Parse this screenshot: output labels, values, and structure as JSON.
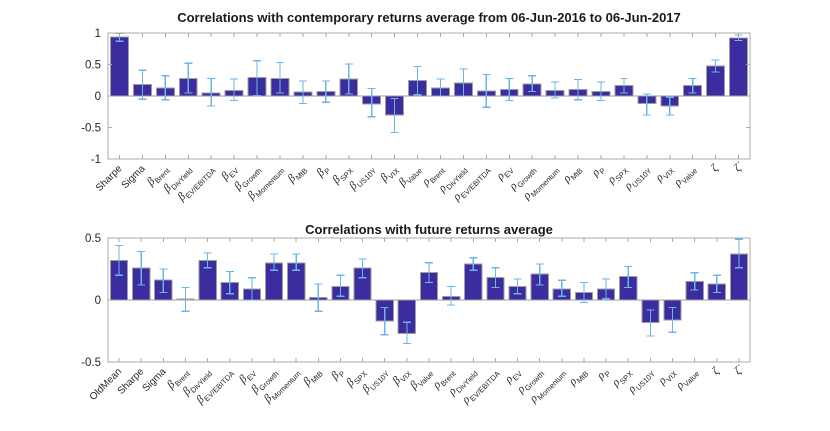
{
  "figure": {
    "background": "#ffffff"
  },
  "colors": {
    "bar_fill": "#3b2da0",
    "bar_edge": "#9e9e9e",
    "error_bar": "#6cb5e8",
    "axis_box": "#a9a9a9",
    "tick_text": "#262626",
    "title_text": "#1a1a1a"
  },
  "chart_data": [
    {
      "type": "bar",
      "title": "Correlations with contemporary returns average from 06-Jun-2016 to 06-Jun-2017",
      "xlabel": "",
      "ylabel": "",
      "grid": false,
      "legend": null,
      "ylim": [
        -1,
        1
      ],
      "yticks": [
        1,
        0.5,
        0,
        -0.5,
        -1
      ],
      "ytick_labels": [
        "1",
        "0.5",
        "0",
        "-0.5",
        "-1"
      ],
      "categories": [
        "Sharpe",
        "Sigma",
        "β_Brent",
        "β_DivYield",
        "β_EV/EBITDA",
        "β_EV",
        "β_Growth",
        "β_Momentum",
        "β_MtB",
        "β_P",
        "β_SPX",
        "β_US10Y",
        "β_VIX",
        "β_Value",
        "ρ_Brent",
        "ρ_DivYield",
        "ρ_EV/EBITDA",
        "ρ_EV",
        "ρ_Growth",
        "ρ_Momentum",
        "ρ_MtB",
        "ρ_P",
        "ρ_SPX",
        "ρ_US10Y",
        "ρ_VIX",
        "ρ_Value",
        "ζ",
        "ζ̇"
      ],
      "values": [
        0.94,
        0.18,
        0.13,
        0.28,
        0.05,
        0.09,
        0.29,
        0.28,
        0.06,
        0.07,
        0.27,
        -0.13,
        -0.3,
        0.25,
        0.13,
        0.21,
        0.08,
        0.1,
        0.19,
        0.09,
        0.1,
        0.07,
        0.17,
        -0.12,
        -0.16,
        0.17,
        0.48,
        0.92
      ],
      "error_low": [
        0.87,
        -0.05,
        -0.06,
        0.05,
        -0.16,
        -0.07,
        0.01,
        0.05,
        -0.12,
        -0.1,
        0.03,
        -0.33,
        -0.58,
        0.02,
        0.0,
        0.0,
        -0.18,
        -0.07,
        0.07,
        -0.03,
        -0.06,
        -0.07,
        0.05,
        -0.3,
        -0.3,
        0.05,
        0.38,
        0.88
      ],
      "error_high": [
        0.99,
        0.41,
        0.32,
        0.52,
        0.28,
        0.27,
        0.56,
        0.53,
        0.24,
        0.24,
        0.51,
        0.12,
        -0.04,
        0.47,
        0.27,
        0.43,
        0.34,
        0.28,
        0.32,
        0.22,
        0.26,
        0.22,
        0.28,
        0.03,
        -0.02,
        0.28,
        0.57,
        0.97
      ]
    },
    {
      "type": "bar",
      "title": "Correlations with future returns average",
      "xlabel": "",
      "ylabel": "",
      "grid": false,
      "legend": null,
      "ylim": [
        -0.5,
        0.5
      ],
      "yticks": [
        0.5,
        0,
        -0.5
      ],
      "ytick_labels": [
        "0.5",
        "0",
        "-0.5"
      ],
      "categories": [
        "OldMean",
        "Sharpe",
        "Sigma",
        "β_Brent",
        "β_DivYield",
        "β_EV/EBITDA",
        "β_EV",
        "β_Growth",
        "β_Momentum",
        "β_MtB",
        "β_P",
        "β_SPX",
        "β_US10Y",
        "β_VIX",
        "β_Value",
        "ρ_Brent",
        "ρ_DivYield",
        "ρ_EV/EBITDA",
        "ρ_EV",
        "ρ_Growth",
        "ρ_Momentum",
        "ρ_MtB",
        "ρ_P",
        "ρ_SPX",
        "ρ_US10Y",
        "ρ_VIX",
        "ρ_Value",
        "ζ",
        "ζ̇"
      ],
      "values": [
        0.32,
        0.26,
        0.16,
        0.01,
        0.32,
        0.14,
        0.09,
        0.3,
        0.3,
        0.02,
        0.11,
        0.26,
        -0.17,
        -0.27,
        0.22,
        0.03,
        0.29,
        0.18,
        0.11,
        0.21,
        0.09,
        0.06,
        0.09,
        0.19,
        -0.18,
        -0.16,
        0.15,
        0.13,
        0.37
      ],
      "error_low": [
        0.2,
        0.12,
        0.06,
        -0.09,
        0.26,
        0.05,
        0.0,
        0.24,
        0.24,
        -0.09,
        0.03,
        0.18,
        -0.28,
        -0.35,
        0.14,
        -0.04,
        0.24,
        0.1,
        0.05,
        0.12,
        0.03,
        -0.02,
        0.01,
        0.1,
        -0.29,
        -0.26,
        0.08,
        0.06,
        0.26
      ],
      "error_high": [
        0.44,
        0.39,
        0.25,
        0.1,
        0.38,
        0.23,
        0.18,
        0.37,
        0.37,
        0.13,
        0.2,
        0.33,
        -0.06,
        -0.18,
        0.3,
        0.11,
        0.34,
        0.26,
        0.17,
        0.29,
        0.16,
        0.14,
        0.17,
        0.27,
        -0.08,
        -0.06,
        0.22,
        0.2,
        0.49
      ]
    }
  ]
}
